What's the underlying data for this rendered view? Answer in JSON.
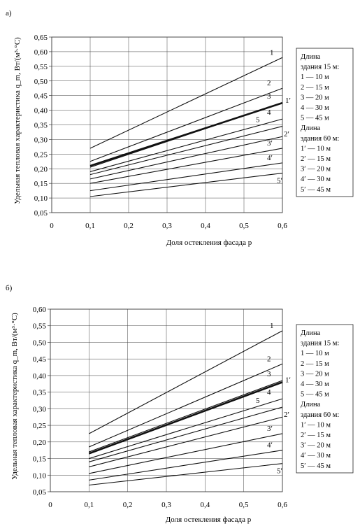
{
  "chart_data": [
    {
      "panel_label": "а)",
      "type": "line",
      "xlabel": "Доля остекления фасада p",
      "ylabel": "Удельная тепловая характеристика q_m, Вт/(м³·°С)",
      "x_ticks": [
        "0",
        "0,1",
        "0,2",
        "0,3",
        "0,4",
        "0,5",
        "0,6"
      ],
      "y_ticks": [
        "0,05",
        "0,10",
        "0,15",
        "0,20",
        "0,25",
        "0,30",
        "0,35",
        "0,40",
        "0,45",
        "0,50",
        "0,55",
        "0,60",
        "0,65"
      ],
      "xlim": [
        0,
        0.6
      ],
      "ylim": [
        0.05,
        0.65
      ],
      "grid": true,
      "legend": {
        "lines": [
          "Длина",
          "здания 15 м:",
          "1 — 10 м",
          "2 — 15 м",
          "3 — 20 м",
          "4 — 30 м",
          "5 — 45 м",
          "Длина",
          "здания 60 м:",
          "1′ — 10 м",
          "2′ — 15 м",
          "3′ — 20 м",
          "4′ — 30 м",
          "5′ — 45 м"
        ],
        "placement": "right"
      },
      "series": [
        {
          "name": "1",
          "x": [
            0.1,
            0.6
          ],
          "y": [
            0.27,
            0.58
          ],
          "bold": false
        },
        {
          "name": "2",
          "x": [
            0.1,
            0.6
          ],
          "y": [
            0.225,
            0.475
          ],
          "bold": false
        },
        {
          "name": "3",
          "x": [
            0.1,
            0.6
          ],
          "y": [
            0.205,
            0.425
          ],
          "bold": false
        },
        {
          "name": "1′",
          "x": [
            0.1,
            0.6
          ],
          "y": [
            0.21,
            0.425
          ],
          "bold": true
        },
        {
          "name": "4",
          "x": [
            0.1,
            0.6
          ],
          "y": [
            0.19,
            0.37
          ],
          "bold": false
        },
        {
          "name": "5",
          "x": [
            0.1,
            0.6
          ],
          "y": [
            0.18,
            0.345
          ],
          "bold": false
        },
        {
          "name": "2′",
          "x": [
            0.1,
            0.6
          ],
          "y": [
            0.165,
            0.31
          ],
          "bold": false
        },
        {
          "name": "3′",
          "x": [
            0.1,
            0.6
          ],
          "y": [
            0.15,
            0.27
          ],
          "bold": false
        },
        {
          "name": "4′",
          "x": [
            0.1,
            0.6
          ],
          "y": [
            0.125,
            0.22
          ],
          "bold": false
        },
        {
          "name": "5′",
          "x": [
            0.1,
            0.6
          ],
          "y": [
            0.105,
            0.185
          ],
          "bold": false
        }
      ]
    },
    {
      "panel_label": "б)",
      "type": "line",
      "xlabel": "Доля остекления фасада p",
      "ylabel": "Удельная тепловая характеристика q_m, Вт/(м³·°С)",
      "x_ticks": [
        "0",
        "0,1",
        "0,2",
        "0,3",
        "0,4",
        "0,5",
        "0,6"
      ],
      "y_ticks": [
        "0,05",
        "0,10",
        "0,15",
        "0,20",
        "0,25",
        "0,30",
        "0,35",
        "0,40",
        "0,45",
        "0,50",
        "0,55",
        "0,60"
      ],
      "xlim": [
        0,
        0.6
      ],
      "ylim": [
        0.05,
        0.6
      ],
      "grid": true,
      "legend": {
        "lines": [
          "Длина",
          "здания 15 м:",
          "1 — 10 м",
          "2 — 15 м",
          "3 — 20 м",
          "4 — 30 м",
          "5 — 45 м",
          "Длина",
          "здания 60 м:",
          "1′ — 10 м",
          "2′ — 15 м",
          "3′ — 20 м",
          "4′ — 30 м",
          "5′ — 45 м"
        ],
        "placement": "right"
      },
      "series": [
        {
          "name": "1",
          "x": [
            0.1,
            0.6
          ],
          "y": [
            0.225,
            0.535
          ],
          "bold": false
        },
        {
          "name": "2",
          "x": [
            0.1,
            0.6
          ],
          "y": [
            0.185,
            0.435
          ],
          "bold": false
        },
        {
          "name": "3",
          "x": [
            0.1,
            0.6
          ],
          "y": [
            0.17,
            0.385
          ],
          "bold": false
        },
        {
          "name": "1′",
          "x": [
            0.1,
            0.6
          ],
          "y": [
            0.165,
            0.38
          ],
          "bold": true
        },
        {
          "name": "4",
          "x": [
            0.1,
            0.6
          ],
          "y": [
            0.15,
            0.33
          ],
          "bold": false
        },
        {
          "name": "5",
          "x": [
            0.1,
            0.6
          ],
          "y": [
            0.14,
            0.305
          ],
          "bold": false
        },
        {
          "name": "2′",
          "x": [
            0.1,
            0.6
          ],
          "y": [
            0.125,
            0.275
          ],
          "bold": false
        },
        {
          "name": "3′",
          "x": [
            0.1,
            0.6
          ],
          "y": [
            0.105,
            0.225
          ],
          "bold": false
        },
        {
          "name": "4′",
          "x": [
            0.1,
            0.6
          ],
          "y": [
            0.085,
            0.175
          ],
          "bold": false
        },
        {
          "name": "5′",
          "x": [
            0.1,
            0.6
          ],
          "y": [
            0.07,
            0.135
          ],
          "bold": false
        }
      ]
    }
  ]
}
